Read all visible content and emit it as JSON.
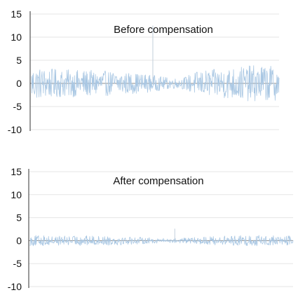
{
  "chart_data": [
    {
      "type": "line",
      "title": "Before compensation",
      "xlabel": "",
      "ylabel": "",
      "ylim": [
        -10,
        15
      ],
      "yticks": [
        15,
        10,
        5,
        0,
        -5,
        -10
      ],
      "grid": true,
      "series": [
        {
          "amplitude_envelope": [
            3.6,
            3.2,
            3.0,
            2.9,
            2.8,
            2.6,
            2.3,
            2.0,
            1.4,
            1.0,
            2.6,
            3.0,
            3.4,
            3.8,
            4.0,
            3.6
          ],
          "spike": {
            "position": 0.49,
            "value": 12.5
          }
        }
      ],
      "color": "#a9c7e3"
    },
    {
      "type": "line",
      "title": "After compensation",
      "xlabel": "",
      "ylabel": "",
      "ylim": [
        -10,
        15
      ],
      "yticks": [
        15,
        10,
        5,
        0,
        -5,
        -10
      ],
      "grid": true,
      "series": [
        {
          "amplitude_envelope": [
            1.2,
            1.1,
            1.0,
            1.1,
            1.0,
            1.0,
            0.8,
            0.6,
            0.5,
            0.6,
            0.9,
            1.0,
            1.1,
            1.2,
            1.1,
            1.0
          ],
          "spike": {
            "position": 0.55,
            "value": 2.6
          }
        }
      ],
      "color": "#a9c7e3"
    }
  ]
}
